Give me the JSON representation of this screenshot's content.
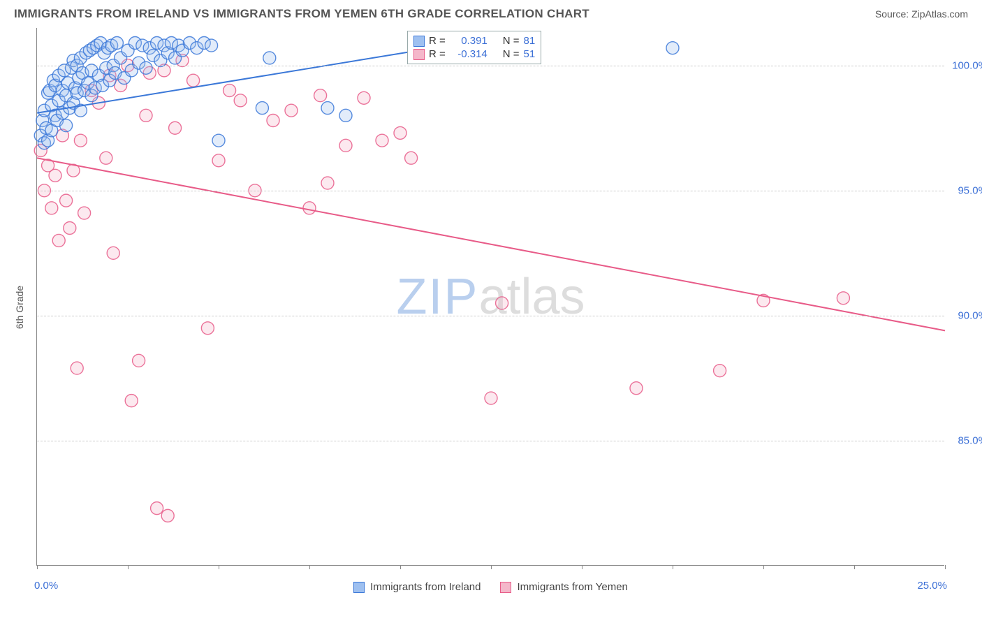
{
  "title": "IMMIGRANTS FROM IRELAND VS IMMIGRANTS FROM YEMEN 6TH GRADE CORRELATION CHART",
  "source": "Source: ZipAtlas.com",
  "y_axis_title": "6th Grade",
  "watermark_a": "ZIP",
  "watermark_b": "atlas",
  "chart": {
    "type": "scatter",
    "xlim": [
      0,
      25
    ],
    "ylim": [
      80,
      101.5
    ],
    "x_ticks": [
      0,
      2.5,
      5,
      7.5,
      10,
      12.5,
      15,
      17.5,
      20,
      22.5,
      25
    ],
    "x_labels_shown": {
      "min": "0.0%",
      "max": "25.0%"
    },
    "y_ticks": [
      85,
      90,
      95,
      100
    ],
    "y_labels": [
      "85.0%",
      "90.0%",
      "95.0%",
      "100.0%"
    ],
    "grid_color": "#cccccc",
    "background_color": "#ffffff",
    "axis_color": "#888888",
    "label_color": "#3b6fd6",
    "marker_radius": 9,
    "marker_fill_opacity": 0.3,
    "marker_stroke_opacity": 0.85,
    "line_width": 2
  },
  "series": {
    "ireland": {
      "label": "Immigrants from Ireland",
      "color_stroke": "#3b78d8",
      "color_fill": "#9ec0f0",
      "R": "0.391",
      "N": "81",
      "trend": {
        "x1": 0,
        "y1": 98.1,
        "x2": 10.5,
        "y2": 100.6
      },
      "points": [
        [
          0.1,
          97.2
        ],
        [
          0.15,
          97.8
        ],
        [
          0.2,
          96.9
        ],
        [
          0.2,
          98.2
        ],
        [
          0.25,
          97.5
        ],
        [
          0.3,
          98.9
        ],
        [
          0.3,
          97.0
        ],
        [
          0.35,
          99.0
        ],
        [
          0.4,
          98.4
        ],
        [
          0.4,
          97.4
        ],
        [
          0.45,
          99.4
        ],
        [
          0.5,
          98.0
        ],
        [
          0.5,
          99.2
        ],
        [
          0.55,
          97.8
        ],
        [
          0.6,
          98.6
        ],
        [
          0.6,
          99.6
        ],
        [
          0.7,
          98.1
        ],
        [
          0.7,
          99.0
        ],
        [
          0.75,
          99.8
        ],
        [
          0.8,
          97.6
        ],
        [
          0.8,
          98.8
        ],
        [
          0.85,
          99.3
        ],
        [
          0.9,
          98.3
        ],
        [
          0.95,
          99.9
        ],
        [
          1.0,
          98.5
        ],
        [
          1.0,
          100.2
        ],
        [
          1.05,
          99.1
        ],
        [
          1.1,
          98.9
        ],
        [
          1.1,
          100.0
        ],
        [
          1.15,
          99.5
        ],
        [
          1.2,
          98.2
        ],
        [
          1.2,
          100.3
        ],
        [
          1.25,
          99.7
        ],
        [
          1.3,
          99.0
        ],
        [
          1.35,
          100.5
        ],
        [
          1.4,
          99.3
        ],
        [
          1.45,
          100.6
        ],
        [
          1.5,
          98.8
        ],
        [
          1.5,
          99.8
        ],
        [
          1.55,
          100.7
        ],
        [
          1.6,
          99.1
        ],
        [
          1.65,
          100.8
        ],
        [
          1.7,
          99.6
        ],
        [
          1.75,
          100.9
        ],
        [
          1.8,
          99.2
        ],
        [
          1.85,
          100.5
        ],
        [
          1.9,
          99.9
        ],
        [
          1.95,
          100.7
        ],
        [
          2.0,
          99.4
        ],
        [
          2.05,
          100.8
        ],
        [
          2.1,
          100.0
        ],
        [
          2.15,
          99.7
        ],
        [
          2.2,
          100.9
        ],
        [
          2.3,
          100.3
        ],
        [
          2.4,
          99.5
        ],
        [
          2.5,
          100.6
        ],
        [
          2.6,
          99.8
        ],
        [
          2.7,
          100.9
        ],
        [
          2.8,
          100.1
        ],
        [
          2.9,
          100.8
        ],
        [
          3.0,
          99.9
        ],
        [
          3.1,
          100.7
        ],
        [
          3.2,
          100.4
        ],
        [
          3.3,
          100.9
        ],
        [
          3.4,
          100.2
        ],
        [
          3.5,
          100.8
        ],
        [
          3.6,
          100.5
        ],
        [
          3.7,
          100.9
        ],
        [
          3.8,
          100.3
        ],
        [
          3.9,
          100.8
        ],
        [
          4.0,
          100.6
        ],
        [
          4.2,
          100.9
        ],
        [
          4.4,
          100.7
        ],
        [
          4.6,
          100.9
        ],
        [
          4.8,
          100.8
        ],
        [
          5.0,
          97.0
        ],
        [
          6.2,
          98.3
        ],
        [
          6.4,
          100.3
        ],
        [
          8.0,
          98.3
        ],
        [
          8.5,
          98.0
        ],
        [
          17.5,
          100.7
        ]
      ]
    },
    "yemen": {
      "label": "Immigrants from Yemen",
      "color_stroke": "#e85b88",
      "color_fill": "#f4b7ca",
      "R": "-0.314",
      "N": "51",
      "trend": {
        "x1": 0,
        "y1": 96.3,
        "x2": 25,
        "y2": 89.4
      },
      "points": [
        [
          0.1,
          96.6
        ],
        [
          0.2,
          95.0
        ],
        [
          0.3,
          96.0
        ],
        [
          0.4,
          94.3
        ],
        [
          0.5,
          95.6
        ],
        [
          0.6,
          93.0
        ],
        [
          0.7,
          97.2
        ],
        [
          0.8,
          94.6
        ],
        [
          0.9,
          93.5
        ],
        [
          1.0,
          95.8
        ],
        [
          1.1,
          87.9
        ],
        [
          1.2,
          97.0
        ],
        [
          1.3,
          94.1
        ],
        [
          1.5,
          99.0
        ],
        [
          1.7,
          98.5
        ],
        [
          1.9,
          96.3
        ],
        [
          2.0,
          99.6
        ],
        [
          2.1,
          92.5
        ],
        [
          2.3,
          99.2
        ],
        [
          2.5,
          100.0
        ],
        [
          2.6,
          86.6
        ],
        [
          2.8,
          88.2
        ],
        [
          3.0,
          98.0
        ],
        [
          3.1,
          99.7
        ],
        [
          3.3,
          82.3
        ],
        [
          3.5,
          99.8
        ],
        [
          3.6,
          82.0
        ],
        [
          3.8,
          97.5
        ],
        [
          4.0,
          100.2
        ],
        [
          4.3,
          99.4
        ],
        [
          4.7,
          89.5
        ],
        [
          5.0,
          96.2
        ],
        [
          5.3,
          99.0
        ],
        [
          5.6,
          98.6
        ],
        [
          6.0,
          95.0
        ],
        [
          6.5,
          97.8
        ],
        [
          7.0,
          98.2
        ],
        [
          7.5,
          94.3
        ],
        [
          7.8,
          98.8
        ],
        [
          8.0,
          95.3
        ],
        [
          8.5,
          96.8
        ],
        [
          9.0,
          98.7
        ],
        [
          9.5,
          97.0
        ],
        [
          10.0,
          97.3
        ],
        [
          12.5,
          86.7
        ],
        [
          12.8,
          90.5
        ],
        [
          16.5,
          87.1
        ],
        [
          18.8,
          87.8
        ],
        [
          20.0,
          90.6
        ],
        [
          22.2,
          90.7
        ],
        [
          10.3,
          96.3
        ]
      ]
    }
  },
  "legend_box": {
    "r_label": "R =",
    "n_label": "N ="
  }
}
